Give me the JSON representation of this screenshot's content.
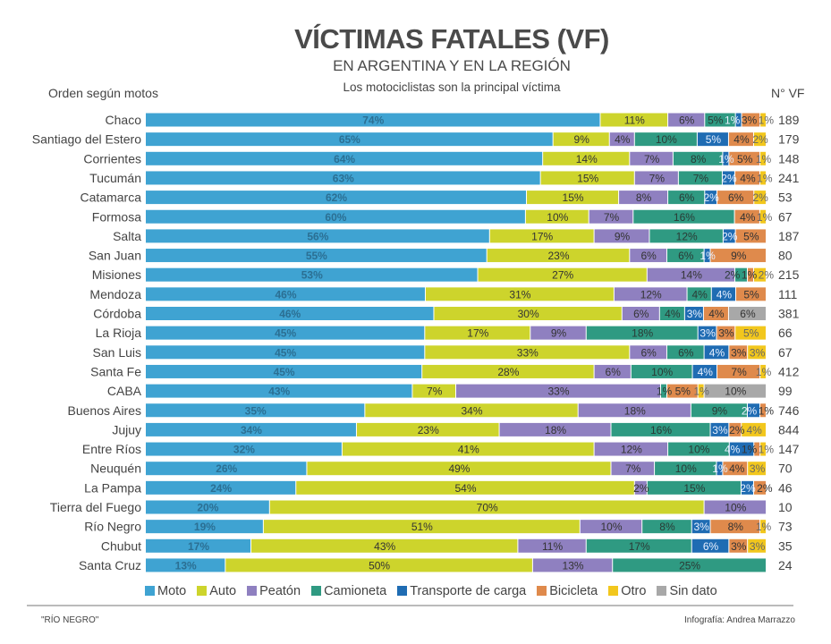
{
  "header": {
    "title": "VÍCTIMAS FATALES (VF)",
    "subtitle": "EN ARGENTINA Y EN LA REGIÓN",
    "tagline": "Los motociclistas son la principal víctima",
    "order_note": "Orden según motos",
    "vf_header": "N° VF"
  },
  "footer": {
    "source": "\"RÍO NEGRO\"",
    "credit": "Infografía: Andrea Marrazzo"
  },
  "chart_data": {
    "type": "bar",
    "orientation": "horizontal-stacked-percent",
    "title": "VÍCTIMAS FATALES (VF)",
    "legend_placement": "bottom",
    "grid": false,
    "unit": "%",
    "series_names": [
      "Moto",
      "Auto",
      "Peatón",
      "Camioneta",
      "Transporte de carga",
      "Bicicleta",
      "Otro",
      "Sin dato"
    ],
    "colors": [
      "#3fa3d2",
      "#cdd42c",
      "#8f80c0",
      "#2f9a82",
      "#1f6cb3",
      "#df8a4c",
      "#f2c71d",
      "#a8a8a8"
    ],
    "categories": [
      "Chaco",
      "Santiago del Estero",
      "Corrientes",
      "Tucumán",
      "Catamarca",
      "Formosa",
      "Salta",
      "San Juan",
      "Misiones",
      "Mendoza",
      "Córdoba",
      "La Rioja",
      "San Luis",
      "Santa Fe",
      "CABA",
      "Buenos Aires",
      "Jujuy",
      "Entre Ríos",
      "Neuquén",
      "La Pampa",
      "Tierra del Fuego",
      "Río Negro",
      "Chubut",
      "Santa Cruz"
    ],
    "values": [
      [
        74,
        11,
        6,
        5,
        1,
        3,
        1,
        0
      ],
      [
        65,
        9,
        4,
        10,
        5,
        4,
        2,
        0
      ],
      [
        64,
        14,
        7,
        8,
        1,
        5,
        1,
        0
      ],
      [
        63,
        15,
        7,
        7,
        2,
        4,
        1,
        0
      ],
      [
        62,
        15,
        8,
        6,
        2,
        6,
        2,
        0
      ],
      [
        60,
        10,
        7,
        16,
        0,
        4,
        1,
        0
      ],
      [
        56,
        17,
        9,
        12,
        2,
        5,
        0,
        0
      ],
      [
        55,
        23,
        6,
        6,
        1,
        9,
        0,
        0
      ],
      [
        53,
        27,
        14,
        2,
        0,
        1,
        2,
        0
      ],
      [
        46,
        31,
        12,
        4,
        4,
        5,
        0,
        0
      ],
      [
        46,
        30,
        6,
        4,
        3,
        4,
        0,
        6
      ],
      [
        45,
        17,
        9,
        18,
        3,
        3,
        5,
        0
      ],
      [
        45,
        33,
        6,
        6,
        4,
        3,
        3,
        0
      ],
      [
        45,
        28,
        6,
        10,
        4,
        7,
        1,
        0
      ],
      [
        43,
        7,
        33,
        1,
        0,
        5,
        1,
        10
      ],
      [
        35,
        34,
        18,
        9,
        2,
        1,
        0,
        0
      ],
      [
        34,
        23,
        18,
        16,
        3,
        2,
        4,
        0
      ],
      [
        32,
        41,
        12,
        10,
        4,
        1,
        1,
        0
      ],
      [
        26,
        49,
        7,
        10,
        1,
        4,
        3,
        0
      ],
      [
        24,
        54,
        2,
        15,
        2,
        2,
        0,
        0
      ],
      [
        20,
        70,
        10,
        0,
        0,
        0,
        0,
        0
      ],
      [
        19,
        51,
        10,
        8,
        3,
        8,
        1,
        0
      ],
      [
        17,
        43,
        11,
        17,
        6,
        3,
        3,
        0
      ],
      [
        13,
        50,
        13,
        25,
        0,
        0,
        0,
        0
      ]
    ],
    "vf_totals": [
      189,
      179,
      148,
      241,
      53,
      67,
      187,
      80,
      215,
      111,
      381,
      66,
      67,
      412,
      99,
      746,
      844,
      147,
      70,
      46,
      10,
      73,
      35,
      24
    ]
  }
}
